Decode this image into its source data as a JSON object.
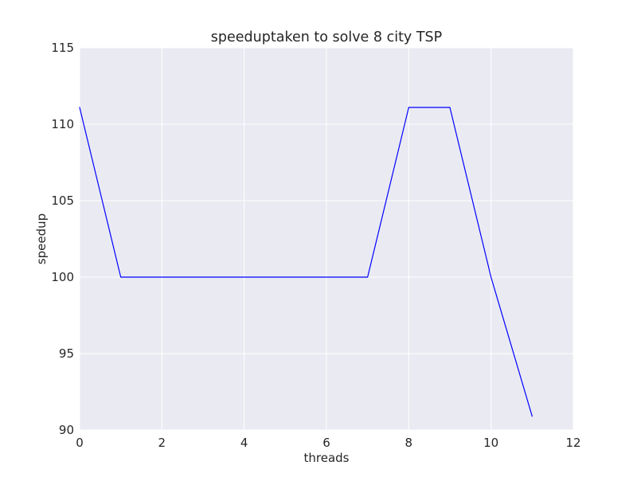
{
  "chart_data": {
    "type": "line",
    "title": "speeduptaken to solve 8 city TSP",
    "xlabel": "threads",
    "ylabel": "speedup",
    "xlim": [
      0,
      12
    ],
    "ylim": [
      90,
      115
    ],
    "xticks": [
      "0",
      "2",
      "4",
      "6",
      "8",
      "10",
      "12"
    ],
    "yticks": [
      "90",
      "95",
      "100",
      "105",
      "110",
      "115"
    ],
    "grid": true,
    "legend": "none",
    "background_color": "#EAEAF2",
    "grid_color": "#FFFFFF",
    "series": [
      {
        "color": "#0000FF",
        "x": [
          0,
          1,
          2,
          3,
          4,
          5,
          6,
          7,
          8,
          9,
          10,
          11
        ],
        "y": [
          111.1,
          100,
          100,
          100,
          100,
          100,
          100,
          100,
          111.1,
          111.1,
          100,
          90.9
        ]
      }
    ]
  }
}
